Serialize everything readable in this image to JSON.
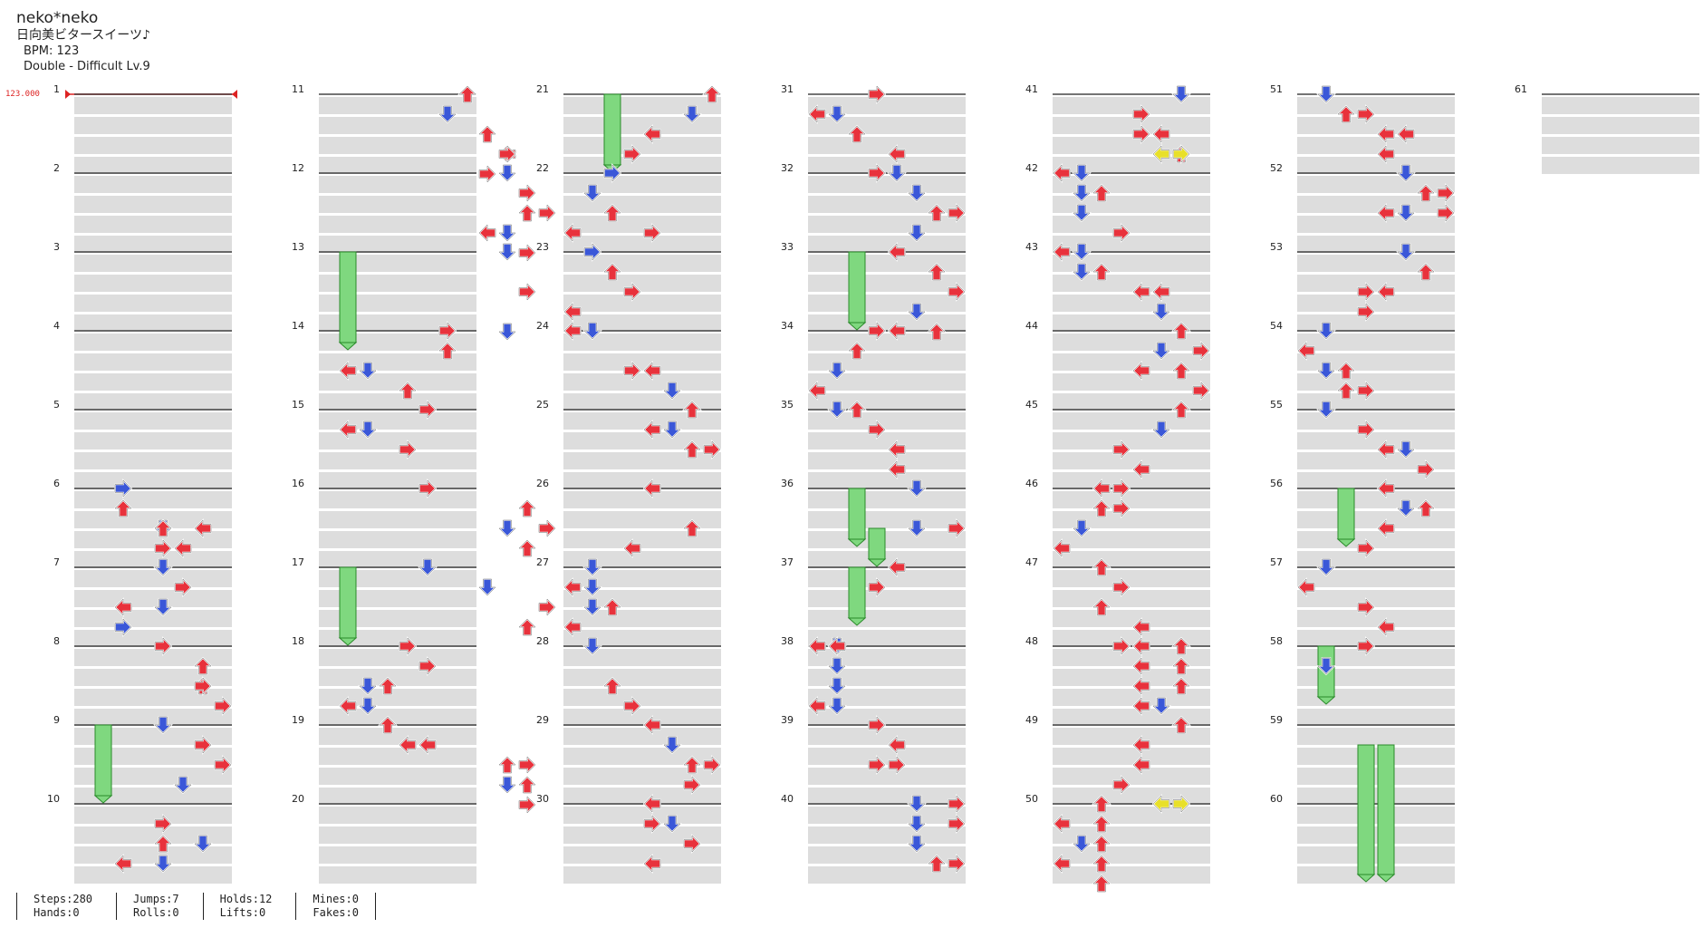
{
  "song": {
    "title": "neko*neko",
    "subtitle": "日向美ビタースイーツ♪",
    "bpm_text": "BPM: 123",
    "difficulty_text": "Double - Difficult  Lv.9"
  },
  "bpm_marker": "123.000",
  "measures": {
    "first": 1,
    "count": 61
  },
  "colors": {
    "red_arrow": "#e8323c",
    "blue_arrow": "#3a57d8",
    "yellow_arrow": "#e8e02a",
    "hold_body": "#7fd87f",
    "row_shade": "#dddddd",
    "bpm_marker": "#dd2222"
  },
  "note_types": [
    "left-arrow",
    "down-arrow",
    "up-arrow",
    "right-arrow"
  ],
  "notes": [
    [
      6,
      0,
      3,
      2
    ],
    [
      6,
      0.5,
      2,
      2
    ],
    [
      6,
      1,
      0,
      6
    ],
    [
      6,
      1,
      1,
      4
    ],
    [
      6,
      1,
      2,
      4
    ],
    [
      6,
      1.5,
      0,
      5
    ],
    [
      6,
      1.5,
      3,
      4
    ],
    [
      7,
      0,
      1,
      4
    ],
    [
      7,
      0.5,
      3,
      5
    ],
    [
      7,
      1,
      0,
      2
    ],
    [
      7,
      1,
      1,
      4
    ],
    [
      7,
      1.5,
      3,
      2
    ],
    [
      8,
      0,
      3,
      4
    ],
    [
      8,
      0.5,
      2,
      6
    ],
    [
      8,
      1,
      2,
      6
    ],
    [
      8,
      1,
      3,
      6
    ],
    [
      8,
      1.5,
      3,
      7
    ],
    [
      9,
      0,
      1,
      4
    ],
    [
      9,
      0.5,
      3,
      6
    ],
    [
      9,
      1,
      3,
      7
    ],
    [
      9,
      1.5,
      1,
      5
    ],
    [
      10,
      0.5,
      3,
      4
    ],
    [
      10,
      1,
      1,
      6
    ],
    [
      10,
      1,
      2,
      4
    ],
    [
      10,
      1.5,
      0,
      2
    ],
    [
      10,
      1.5,
      1,
      4
    ],
    [
      11,
      0,
      2,
      7
    ],
    [
      11,
      0.5,
      1,
      6
    ],
    [
      11,
      1,
      2,
      8
    ],
    [
      11,
      1.5,
      0,
      9
    ],
    [
      11,
      1.5,
      3,
      9
    ],
    [
      11,
      2,
      3,
      8
    ],
    [
      12,
      0,
      1,
      9
    ],
    [
      12,
      0.5,
      3,
      10
    ],
    [
      12,
      1,
      2,
      10
    ],
    [
      12,
      1,
      3,
      11
    ],
    [
      12,
      1.5,
      0,
      8
    ],
    [
      12,
      1.5,
      1,
      9
    ],
    [
      12,
      2,
      3,
      10
    ],
    [
      13,
      0,
      1,
      9
    ],
    [
      13,
      1,
      3,
      10
    ],
    [
      13,
      2,
      1,
      9
    ],
    [
      14,
      0,
      3,
      6
    ],
    [
      14,
      0.5,
      2,
      6
    ],
    [
      14,
      1,
      0,
      1
    ],
    [
      14,
      1,
      1,
      2
    ],
    [
      14,
      1.5,
      2,
      4
    ],
    [
      15,
      0,
      3,
      5
    ],
    [
      15,
      0.5,
      0,
      1
    ],
    [
      15,
      0.5,
      1,
      2
    ],
    [
      15,
      1,
      3,
      4
    ],
    [
      16,
      0,
      3,
      5
    ],
    [
      16,
      0.5,
      2,
      10
    ],
    [
      16,
      1,
      3,
      11
    ],
    [
      16,
      1,
      1,
      9
    ],
    [
      16,
      1.5,
      2,
      10
    ],
    [
      17,
      0,
      1,
      5
    ],
    [
      17,
      0.5,
      1,
      8
    ],
    [
      17,
      1,
      3,
      11
    ],
    [
      17,
      1.5,
      2,
      10
    ],
    [
      18,
      0,
      3,
      4
    ],
    [
      18,
      0.5,
      3,
      5
    ],
    [
      18,
      1,
      1,
      2
    ],
    [
      18,
      1,
      2,
      3
    ],
    [
      18,
      1.5,
      0,
      1
    ],
    [
      18,
      1.5,
      1,
      2
    ],
    [
      19,
      0,
      2,
      3
    ],
    [
      19,
      0.5,
      0,
      4
    ],
    [
      19,
      0.5,
      0,
      5
    ],
    [
      19,
      1,
      2,
      9
    ],
    [
      19,
      1,
      3,
      10
    ],
    [
      19,
      1.5,
      1,
      9
    ],
    [
      19,
      1.5,
      2,
      10
    ],
    [
      19,
      2,
      3,
      10
    ],
    [
      21,
      0,
      2,
      7
    ],
    [
      21,
      0.5,
      1,
      6
    ],
    [
      21,
      1,
      0,
      4
    ],
    [
      21,
      1.5,
      3,
      3
    ],
    [
      22,
      0,
      3,
      2
    ],
    [
      22,
      0.5,
      1,
      1
    ],
    [
      22,
      1,
      2,
      2
    ],
    [
      22,
      1.5,
      3,
      4
    ],
    [
      22,
      1.5,
      0,
      0
    ],
    [
      23,
      0,
      3,
      1
    ],
    [
      23,
      0.5,
      2,
      2
    ],
    [
      23,
      1,
      3,
      3
    ],
    [
      23,
      1.5,
      0,
      0
    ],
    [
      24,
      0,
      0,
      0
    ],
    [
      24,
      0,
      1,
      1
    ],
    [
      24,
      1,
      3,
      3
    ],
    [
      24,
      1,
      0,
      4
    ],
    [
      24,
      1.5,
      1,
      5
    ],
    [
      25,
      0,
      2,
      6
    ],
    [
      25,
      0.5,
      0,
      4
    ],
    [
      25,
      0.5,
      1,
      5
    ],
    [
      25,
      1,
      2,
      6
    ],
    [
      25,
      1,
      3,
      7
    ],
    [
      26,
      0,
      0,
      4
    ],
    [
      26,
      1,
      2,
      6
    ],
    [
      26,
      1.5,
      0,
      3
    ],
    [
      27,
      0,
      1,
      1
    ],
    [
      27,
      0.5,
      0,
      0
    ],
    [
      27,
      0.5,
      1,
      1
    ],
    [
      27,
      1,
      1,
      1
    ],
    [
      27,
      1,
      2,
      2
    ],
    [
      27,
      1.5,
      0,
      0
    ],
    [
      28,
      0,
      1,
      1
    ],
    [
      28,
      1,
      2,
      2
    ],
    [
      28,
      1.5,
      3,
      3
    ],
    [
      29,
      0,
      0,
      4
    ],
    [
      29,
      0.5,
      1,
      5
    ],
    [
      29,
      1,
      2,
      6
    ],
    [
      29,
      1,
      3,
      7
    ],
    [
      29,
      1.5,
      3,
      6
    ],
    [
      30,
      0,
      0,
      4
    ],
    [
      30,
      0.5,
      3,
      4
    ],
    [
      30,
      0.5,
      1,
      5
    ],
    [
      30,
      1,
      3,
      6
    ],
    [
      30,
      1.5,
      0,
      4
    ],
    [
      31,
      0,
      3,
      3
    ],
    [
      31,
      0.5,
      0,
      0
    ],
    [
      31,
      0.5,
      1,
      1
    ],
    [
      31,
      1,
      2,
      2
    ],
    [
      31,
      1.5,
      0,
      4
    ],
    [
      32,
      0,
      3,
      3
    ],
    [
      32,
      0,
      1,
      4
    ],
    [
      32,
      0.5,
      1,
      5
    ],
    [
      32,
      1,
      2,
      6
    ],
    [
      32,
      1,
      3,
      7
    ],
    [
      32,
      1.5,
      1,
      5
    ],
    [
      33,
      0,
      0,
      4
    ],
    [
      33,
      0.5,
      2,
      6
    ],
    [
      33,
      1,
      3,
      7
    ],
    [
      33,
      1.5,
      1,
      5
    ],
    [
      33,
      2,
      2,
      6
    ],
    [
      34,
      0,
      3,
      3
    ],
    [
      34,
      0,
      0,
      4
    ],
    [
      34,
      0.5,
      2,
      2
    ],
    [
      34,
      1,
      1,
      1
    ],
    [
      34,
      1.5,
      0,
      0
    ],
    [
      35,
      0,
      1,
      1
    ],
    [
      35,
      0,
      2,
      2
    ],
    [
      35,
      0.5,
      3,
      3
    ],
    [
      35,
      1,
      0,
      4
    ],
    [
      35,
      1.5,
      0,
      4
    ],
    [
      36,
      0,
      1,
      5
    ],
    [
      36,
      1,
      3,
      7
    ],
    [
      36,
      1,
      1,
      5
    ],
    [
      37,
      0,
      0,
      4
    ],
    [
      37,
      0.5,
      3,
      3
    ],
    [
      38,
      0,
      1,
      1
    ],
    [
      38,
      0,
      0,
      0
    ],
    [
      38,
      0,
      0,
      1
    ],
    [
      38,
      0.5,
      1,
      1
    ],
    [
      38,
      1,
      1,
      1
    ],
    [
      38,
      1.5,
      0,
      0
    ],
    [
      38,
      1.5,
      1,
      1
    ],
    [
      39,
      0,
      3,
      3
    ],
    [
      39,
      0.5,
      0,
      4
    ],
    [
      39,
      1,
      3,
      3
    ],
    [
      39,
      1,
      3,
      4
    ],
    [
      40,
      0,
      1,
      5
    ],
    [
      40,
      0,
      3,
      7
    ],
    [
      40,
      0.5,
      1,
      5
    ],
    [
      40,
      0.5,
      3,
      7
    ],
    [
      40,
      1,
      1,
      5
    ],
    [
      40,
      1.5,
      2,
      6
    ],
    [
      40,
      1.5,
      3,
      7
    ],
    [
      41,
      0,
      1,
      6
    ],
    [
      41,
      0.5,
      3,
      4
    ],
    [
      41,
      1,
      0,
      5
    ],
    [
      41,
      1,
      3,
      4
    ],
    [
      41,
      1.5,
      2,
      6
    ],
    [
      42,
      0,
      0,
      0
    ],
    [
      42,
      0,
      1,
      1
    ],
    [
      42,
      0.5,
      1,
      1
    ],
    [
      42,
      0.5,
      2,
      2
    ],
    [
      42,
      1,
      1,
      1
    ],
    [
      42,
      1.5,
      3,
      3
    ],
    [
      43,
      0,
      1,
      1
    ],
    [
      43,
      0,
      0,
      0
    ],
    [
      43,
      0.5,
      2,
      2
    ],
    [
      43,
      0.5,
      1,
      1
    ],
    [
      43,
      1,
      0,
      4
    ],
    [
      43,
      1,
      0,
      5
    ],
    [
      43,
      1.5,
      1,
      5
    ],
    [
      44,
      0,
      2,
      6
    ],
    [
      44,
      0.5,
      3,
      7
    ],
    [
      44,
      0.5,
      1,
      5
    ],
    [
      44,
      1,
      2,
      6
    ],
    [
      44,
      1,
      0,
      4
    ],
    [
      44,
      1.5,
      3,
      7
    ],
    [
      45,
      0,
      2,
      6
    ],
    [
      45,
      0.5,
      1,
      5
    ],
    [
      45,
      1,
      3,
      3
    ],
    [
      45,
      1.5,
      0,
      4
    ],
    [
      46,
      0,
      0,
      2
    ],
    [
      46,
      0,
      3,
      3
    ],
    [
      46,
      0.5,
      2,
      2
    ],
    [
      46,
      0.5,
      3,
      3
    ],
    [
      46,
      1,
      1,
      1
    ],
    [
      46,
      1.5,
      0,
      0
    ],
    [
      47,
      0,
      2,
      2
    ],
    [
      47,
      0.5,
      3,
      3
    ],
    [
      47,
      1,
      2,
      2
    ],
    [
      47,
      1.5,
      0,
      4
    ],
    [
      48,
      0,
      3,
      3
    ],
    [
      48,
      0,
      0,
      4
    ],
    [
      48,
      0,
      2,
      6
    ],
    [
      48,
      0.5,
      0,
      4
    ],
    [
      48,
      0.5,
      2,
      6
    ],
    [
      48,
      1,
      0,
      4
    ],
    [
      48,
      1,
      2,
      6
    ],
    [
      48,
      1.5,
      0,
      4
    ],
    [
      48,
      1.5,
      1,
      5
    ],
    [
      49,
      0,
      2,
      6
    ],
    [
      49,
      0.5,
      0,
      4
    ],
    [
      49,
      1,
      0,
      4
    ],
    [
      49,
      1.5,
      3,
      3
    ],
    [
      50,
      0,
      2,
      2
    ],
    [
      50,
      0.5,
      0,
      0
    ],
    [
      50,
      0.5,
      2,
      2
    ],
    [
      50,
      1,
      1,
      1
    ],
    [
      50,
      1,
      2,
      2
    ],
    [
      50,
      1.5,
      0,
      0
    ],
    [
      50,
      1.5,
      2,
      2
    ],
    [
      50,
      2,
      2,
      2
    ],
    [
      51,
      0,
      1,
      1
    ],
    [
      51,
      0.5,
      2,
      2
    ],
    [
      51,
      0.5,
      3,
      3
    ],
    [
      51,
      1,
      0,
      4
    ],
    [
      51,
      1,
      0,
      5
    ],
    [
      51,
      1.5,
      0,
      4
    ],
    [
      52,
      0,
      1,
      5
    ],
    [
      52,
      0.5,
      2,
      6
    ],
    [
      52,
      0.5,
      3,
      7
    ],
    [
      52,
      1,
      0,
      4
    ],
    [
      52,
      1,
      1,
      5
    ],
    [
      52,
      1,
      3,
      7
    ],
    [
      53,
      0,
      1,
      5
    ],
    [
      53,
      0.5,
      2,
      6
    ],
    [
      53,
      1,
      3,
      3
    ],
    [
      53,
      1,
      0,
      4
    ],
    [
      53,
      1.5,
      3,
      3
    ],
    [
      54,
      0,
      1,
      1
    ],
    [
      54,
      0.5,
      0,
      0
    ],
    [
      54,
      1,
      1,
      1
    ],
    [
      54,
      1,
      2,
      2
    ],
    [
      54,
      1.5,
      3,
      3
    ],
    [
      54,
      1.5,
      2,
      2
    ],
    [
      55,
      0,
      1,
      1
    ],
    [
      55,
      0.5,
      3,
      3
    ],
    [
      55,
      1,
      0,
      4
    ],
    [
      55,
      1,
      1,
      5
    ],
    [
      55,
      1.5,
      3,
      6
    ],
    [
      56,
      0,
      0,
      4
    ],
    [
      56,
      0.5,
      1,
      5
    ],
    [
      56,
      0.5,
      2,
      6
    ],
    [
      56,
      1,
      0,
      4
    ],
    [
      56,
      1.5,
      3,
      3
    ],
    [
      57,
      0,
      1,
      1
    ],
    [
      57,
      0.5,
      0,
      0
    ],
    [
      57,
      1,
      3,
      3
    ],
    [
      57,
      1.5,
      0,
      4
    ],
    [
      58,
      0,
      3,
      3
    ],
    [
      58,
      0.5,
      1,
      1
    ]
  ],
  "holds": [
    [
      9,
      0,
      9,
      1.5,
      1
    ],
    [
      13,
      0,
      13,
      2,
      1
    ],
    [
      17,
      0,
      17,
      1.5,
      1
    ],
    [
      21,
      0,
      21,
      1.5,
      2
    ],
    [
      33,
      0,
      33,
      1.5,
      2
    ],
    [
      36,
      0,
      36,
      1,
      2
    ],
    [
      36,
      1,
      36,
      1.5,
      3
    ],
    [
      37,
      0,
      37,
      1,
      2
    ],
    [
      56,
      0,
      56,
      1,
      2
    ],
    [
      58,
      0,
      58,
      1,
      1
    ],
    [
      59,
      0.5,
      60,
      1.5,
      3
    ],
    [
      59,
      0.5,
      60,
      1.5,
      4
    ]
  ],
  "yellow_notes": [
    [
      41,
      1.5,
      0,
      5
    ],
    [
      41,
      1.5,
      3,
      6
    ],
    [
      50,
      0,
      0,
      5
    ],
    [
      50,
      0,
      3,
      6
    ]
  ],
  "stats": {
    "col1": [
      "Steps:280",
      "Hands:0"
    ],
    "col2": [
      "Jumps:7",
      "Rolls:0"
    ],
    "col3": [
      "Holds:12",
      "Lifts:0"
    ],
    "col4": [
      "Mines:0",
      "Fakes:0"
    ]
  }
}
